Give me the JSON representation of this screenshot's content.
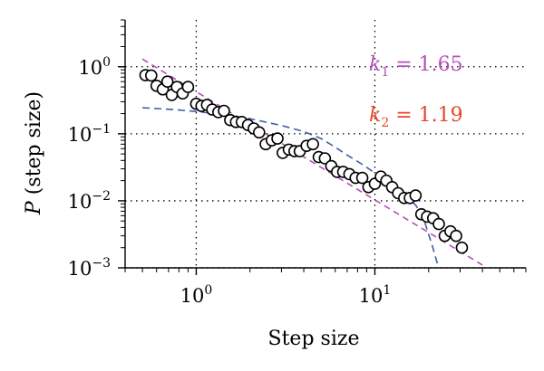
{
  "chart_data": {
    "type": "scatter",
    "xscale": "log",
    "yscale": "log",
    "xlim": [
      0.4,
      70
    ],
    "ylim": [
      0.001,
      5
    ],
    "grid": true,
    "xlabel": "Step size",
    "ylabel": {
      "italic": "P",
      "rest": " (step size)"
    },
    "xticks": [
      {
        "value": 1,
        "base": "10",
        "exp": "0"
      },
      {
        "value": 10,
        "base": "10",
        "exp": "1"
      }
    ],
    "yticks": [
      {
        "value": 1,
        "base": "10",
        "exp": "0"
      },
      {
        "value": 0.1,
        "base": "10",
        "exp": "−1"
      },
      {
        "value": 0.01,
        "base": "10",
        "exp": "−2"
      },
      {
        "value": 0.001,
        "base": "10",
        "exp": "−3"
      }
    ],
    "series": [
      {
        "kind": "points",
        "marker": "open-circle",
        "color": "#000000",
        "points": [
          [
            0.52,
            0.75
          ],
          [
            0.56,
            0.74
          ],
          [
            0.6,
            0.52
          ],
          [
            0.65,
            0.46
          ],
          [
            0.69,
            0.6
          ],
          [
            0.73,
            0.38
          ],
          [
            0.78,
            0.5
          ],
          [
            0.84,
            0.4
          ],
          [
            0.9,
            0.5
          ],
          [
            1.0,
            0.28
          ],
          [
            1.07,
            0.26
          ],
          [
            1.15,
            0.27
          ],
          [
            1.23,
            0.23
          ],
          [
            1.33,
            0.21
          ],
          [
            1.43,
            0.22
          ],
          [
            1.55,
            0.16
          ],
          [
            1.67,
            0.15
          ],
          [
            1.8,
            0.15
          ],
          [
            1.95,
            0.135
          ],
          [
            2.1,
            0.12
          ],
          [
            2.25,
            0.105
          ],
          [
            2.45,
            0.07
          ],
          [
            2.65,
            0.08
          ],
          [
            2.85,
            0.085
          ],
          [
            3.05,
            0.052
          ],
          [
            3.3,
            0.058
          ],
          [
            3.55,
            0.055
          ],
          [
            3.8,
            0.055
          ],
          [
            4.15,
            0.066
          ],
          [
            4.5,
            0.07
          ],
          [
            4.85,
            0.045
          ],
          [
            5.25,
            0.043
          ],
          [
            5.7,
            0.033
          ],
          [
            6.15,
            0.027
          ],
          [
            6.65,
            0.027
          ],
          [
            7.2,
            0.025
          ],
          [
            7.8,
            0.022
          ],
          [
            8.5,
            0.022
          ],
          [
            9.2,
            0.016
          ],
          [
            10.0,
            0.018
          ],
          [
            10.8,
            0.023
          ],
          [
            11.6,
            0.02
          ],
          [
            12.5,
            0.016
          ],
          [
            13.5,
            0.013
          ],
          [
            14.6,
            0.011
          ],
          [
            15.7,
            0.011
          ],
          [
            16.9,
            0.012
          ],
          [
            18.2,
            0.0063
          ],
          [
            19.6,
            0.0058
          ],
          [
            21.2,
            0.0055
          ],
          [
            22.8,
            0.0045
          ],
          [
            24.6,
            0.003
          ],
          [
            26.5,
            0.0035
          ],
          [
            28.5,
            0.003
          ],
          [
            30.7,
            0.002
          ]
        ]
      },
      {
        "kind": "power-law-fit",
        "color": "#b64eb8",
        "dash": "7 5",
        "points": [
          [
            0.5,
            1.3
          ],
          [
            40,
            0.0011
          ]
        ]
      },
      {
        "kind": "fit-curve",
        "color": "#3e5fa7",
        "dash": "8 5",
        "points": [
          [
            0.5,
            0.245
          ],
          [
            0.75,
            0.23
          ],
          [
            1.0,
            0.215
          ],
          [
            1.5,
            0.19
          ],
          [
            2.0,
            0.168
          ],
          [
            3.0,
            0.133
          ],
          [
            4.0,
            0.108
          ],
          [
            5.0,
            0.085
          ],
          [
            6.0,
            0.063
          ],
          [
            7.0,
            0.048
          ],
          [
            8.5,
            0.035
          ],
          [
            10.0,
            0.026
          ],
          [
            13.0,
            0.017
          ],
          [
            17.0,
            0.0085
          ],
          [
            19.0,
            0.0048
          ],
          [
            21.0,
            0.0021
          ],
          [
            22.5,
            0.0011
          ]
        ]
      }
    ],
    "annotations": [
      {
        "symbol": "k",
        "sub": "1",
        "text": " = 1.65",
        "color": "#b64eb8"
      },
      {
        "symbol": "k",
        "sub": "2",
        "text": " = 1.19",
        "color": "#e8442a"
      }
    ]
  }
}
